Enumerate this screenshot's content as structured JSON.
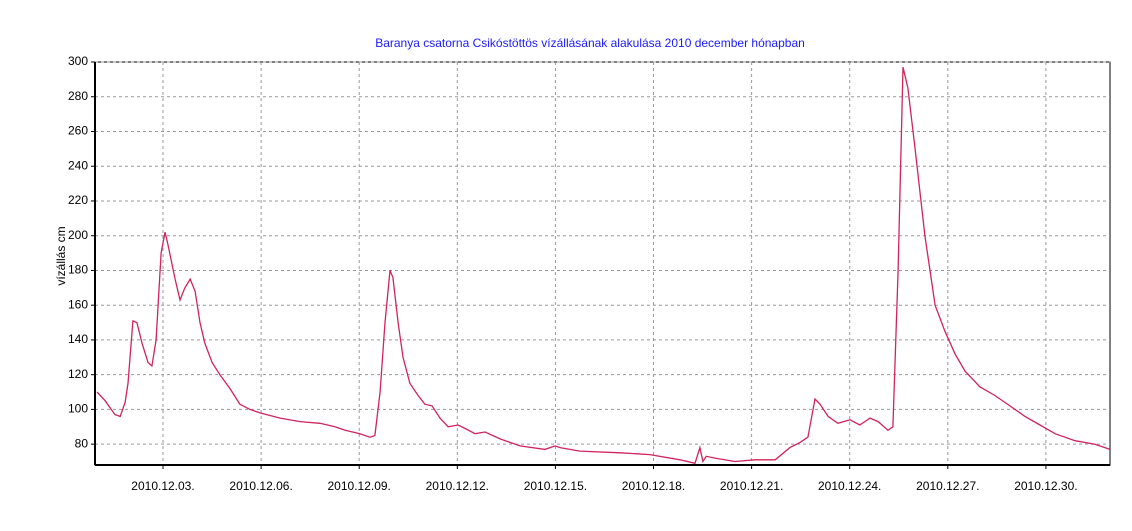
{
  "chart_data": {
    "type": "line",
    "title": "Baranya csatorna Csikóstöttös vízállásának alakulása 2010 december hónapban",
    "ylabel": "vízállás cm",
    "color": "#d0245a",
    "grid": true,
    "xlim": [
      0.92,
      31.96
    ],
    "ylim": [
      68,
      300
    ],
    "yticks": [
      80,
      100,
      120,
      140,
      160,
      180,
      200,
      220,
      240,
      260,
      280,
      300
    ],
    "xticks": [
      {
        "value": 3,
        "label": "2010.12.03."
      },
      {
        "value": 6,
        "label": "2010.12.06."
      },
      {
        "value": 9,
        "label": "2010.12.09."
      },
      {
        "value": 12,
        "label": "2010.12.12."
      },
      {
        "value": 15,
        "label": "2010.12.15."
      },
      {
        "value": 18,
        "label": "2010.12.18."
      },
      {
        "value": 21,
        "label": "2010.12.21."
      },
      {
        "value": 24,
        "label": "2010.12.24."
      },
      {
        "value": 27,
        "label": "2010.12.27."
      },
      {
        "value": 30,
        "label": "2010.12.30."
      }
    ],
    "x": [
      0.98,
      1.23,
      1.53,
      1.69,
      1.84,
      1.93,
      2.08,
      2.2,
      2.36,
      2.54,
      2.66,
      2.79,
      2.94,
      3.06,
      3.15,
      3.37,
      3.52,
      3.67,
      3.83,
      3.98,
      4.13,
      4.28,
      4.5,
      4.74,
      5.05,
      5.35,
      5.66,
      5.97,
      6.58,
      7.19,
      7.8,
      8.26,
      8.57,
      9.02,
      9.33,
      9.48,
      9.64,
      9.79,
      9.94,
      10.03,
      10.19,
      10.34,
      10.55,
      10.8,
      11.01,
      11.23,
      11.47,
      11.72,
      12.02,
      12.24,
      12.54,
      12.85,
      13.31,
      13.92,
      14.68,
      14.99,
      15.14,
      15.75,
      16.98,
      17.89,
      18.81,
      19.27,
      19.42,
      19.51,
      19.61,
      19.88,
      20.49,
      21.1,
      21.72,
      22.17,
      22.48,
      22.72,
      22.94,
      23.09,
      23.34,
      23.64,
      24.01,
      24.31,
      24.62,
      24.87,
      25.17,
      25.32,
      25.48,
      25.63,
      25.78,
      26.0,
      26.3,
      26.61,
      26.91,
      27.22,
      27.53,
      27.98,
      28.44,
      28.9,
      29.36,
      29.82,
      30.28,
      30.89,
      31.5,
      31.96
    ],
    "values": [
      110,
      105,
      97,
      96,
      104,
      115,
      151,
      150,
      138,
      127,
      125,
      140,
      190,
      202,
      195,
      175,
      163,
      170,
      175,
      168,
      150,
      138,
      127,
      120,
      112,
      103,
      100,
      98,
      95,
      93,
      92,
      90,
      88,
      86,
      84,
      85,
      110,
      150,
      180,
      176,
      150,
      130,
      115,
      108,
      103,
      102,
      95,
      90,
      91,
      89,
      86,
      87,
      83,
      79,
      77,
      79,
      78,
      76,
      75,
      74,
      71,
      69,
      78,
      70,
      73,
      72,
      70,
      71,
      71,
      78,
      81,
      84,
      106,
      103,
      96,
      92,
      94,
      91,
      95,
      93,
      88,
      90,
      180,
      297,
      285,
      250,
      200,
      160,
      145,
      132,
      122,
      113,
      108,
      102,
      96,
      91,
      86,
      82,
      80,
      77
    ]
  }
}
